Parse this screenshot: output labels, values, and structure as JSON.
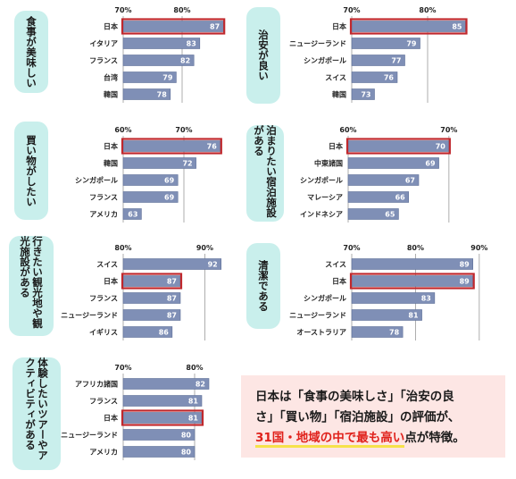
{
  "colors": {
    "bar": "#7f8fb6",
    "bar_stroke": "#5e6f98",
    "highlight_outline": "#c0282d",
    "pill": "#c9efec",
    "summary_bg": "#fde6e4",
    "summary_red": "#e0211b"
  },
  "summary": {
    "line1": "日本は「食事の美味しさ」「治安の良",
    "line2": "さ」「買い物」「宿泊施設」の評価が、",
    "highlight": "31国・地域の中で最も高い",
    "tail": "点が特徴。"
  },
  "chart_data": [
    {
      "type": "bar",
      "title": "食事が美味しい",
      "categories": [
        "日本",
        "イタリア",
        "フランス",
        "台湾",
        "韓国"
      ],
      "values": [
        87,
        83,
        82,
        79,
        78
      ],
      "ticks": [
        70,
        80
      ],
      "xlim": [
        70,
        90
      ],
      "highlight": "日本"
    },
    {
      "type": "bar",
      "title": "治安が良い",
      "categories": [
        "日本",
        "ニュージーランド",
        "シンガポール",
        "スイス",
        "韓国"
      ],
      "values": [
        85,
        79,
        77,
        76,
        73
      ],
      "ticks": [
        70,
        80
      ],
      "xlim": [
        70,
        86
      ],
      "highlight": "日本"
    },
    {
      "type": "bar",
      "title": "買い物がしたい",
      "categories": [
        "日本",
        "韓国",
        "シンガポール",
        "フランス",
        "アメリカ"
      ],
      "values": [
        76,
        72,
        69,
        69,
        63
      ],
      "ticks": [
        60,
        70
      ],
      "xlim": [
        60,
        80
      ],
      "highlight": "日本"
    },
    {
      "type": "bar",
      "title": "泊まりたい宿泊施設がある",
      "categories": [
        "日本",
        "中東諸国",
        "シンガポール",
        "マレーシア",
        "インドネシア"
      ],
      "values": [
        70,
        69,
        67,
        66,
        65
      ],
      "ticks": [
        60,
        70
      ],
      "xlim": [
        60,
        74
      ],
      "highlight": "日本"
    },
    {
      "type": "bar",
      "title": "行きたい観光地や観光施設がある",
      "categories": [
        "スイス",
        "日本",
        "フランス",
        "ニュージーランド",
        "イギリス"
      ],
      "values": [
        92,
        87,
        87,
        87,
        86
      ],
      "ticks": [
        80,
        90
      ],
      "xlim": [
        80,
        94
      ],
      "highlight": "日本"
    },
    {
      "type": "bar",
      "title": "清潔である",
      "categories": [
        "スイス",
        "日本",
        "シンガポール",
        "ニュージーランド",
        "オーストラリア"
      ],
      "values": [
        89,
        89,
        83,
        81,
        78
      ],
      "ticks": [
        70,
        80,
        90
      ],
      "xlim": [
        70,
        91
      ],
      "highlight": "日本"
    },
    {
      "type": "bar",
      "title": "体験したいツアーやアクティビティがある",
      "categories": [
        "アフリカ諸国",
        "フランス",
        "日本",
        "ニュージーランド",
        "アメリカ"
      ],
      "values": [
        82,
        81,
        81,
        80,
        80
      ],
      "ticks": [
        70,
        80
      ],
      "xlim": [
        70,
        85
      ],
      "highlight": "日本"
    }
  ]
}
